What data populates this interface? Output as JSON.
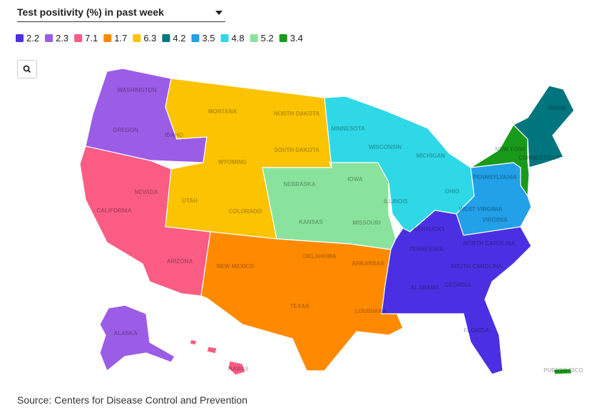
{
  "dropdown": {
    "label": "Test positivity (%) in past week"
  },
  "regions": [
    {
      "value": 2.2,
      "color": "#4b30e3",
      "states": [
        "KENTUCKY",
        "TENNESSEE",
        "NORTH CAROLINA",
        "SOUTH CAROLINA",
        "ALABAMA",
        "GEORGIA",
        "FLORIDA"
      ]
    },
    {
      "value": 2.3,
      "color": "#9b5ce6",
      "states": [
        "WASHINGTON",
        "OREGON",
        "IDAHO",
        "ALASKA"
      ]
    },
    {
      "value": 7.1,
      "color": "#fa5c84",
      "states": [
        "CALIFORNIA",
        "NEVADA",
        "ARIZONA",
        "HAWAII"
      ]
    },
    {
      "value": 1.7,
      "color": "#ff8a00",
      "states": [
        "NEW MEXICO",
        "TEXAS",
        "OKLAHOMA",
        "ARKANSAS",
        "LOUISIANA"
      ]
    },
    {
      "value": 6.3,
      "color": "#fcc300",
      "states": [
        "MONTANA",
        "NORTH DAKOTA",
        "SOUTH DAKOTA",
        "WYOMING",
        "UTAH",
        "COLORADO"
      ]
    },
    {
      "value": 4.2,
      "color": "#00757d",
      "states": [
        "MAINE",
        "CONNECTICUT"
      ]
    },
    {
      "value": 3.5,
      "color": "#22a0e8",
      "states": [
        "PENNSYLVANIA",
        "WEST VIRGINIA",
        "VIRGINIA"
      ]
    },
    {
      "value": 4.8,
      "color": "#2fd8e6",
      "states": [
        "MINNESOTA",
        "WISCONSIN",
        "MICHIGAN",
        "ILLINOIS",
        "OHIO"
      ]
    },
    {
      "value": 5.2,
      "color": "#8ae39c",
      "states": [
        "NEBRASKA",
        "IOWA",
        "KANSAS",
        "MISSOURI"
      ]
    },
    {
      "value": 3.4,
      "color": "#1a9a1a",
      "states": [
        "NEW YORK",
        "PUERTO RICO"
      ]
    }
  ],
  "source": "Source: Centers for Disease Control and Prevention"
}
